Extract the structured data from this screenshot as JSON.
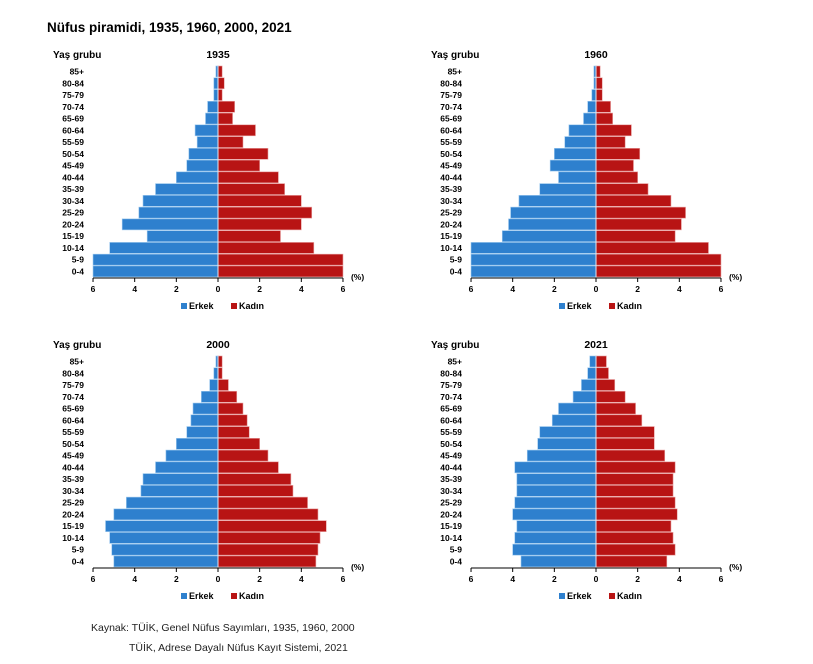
{
  "title": "Nüfus piramidi, 1935, 1960, 2000, 2021",
  "colors": {
    "male": "#2E80CE",
    "female": "#B81414",
    "axis": "#000000"
  },
  "source": {
    "line1": "Kaynak: TÜİK, Genel Nüfus Sayımları, 1935, 1960, 2000",
    "line2": "TÜİK, Adrese Dayalı Nüfus Kayıt Sistemi, 2021"
  },
  "chart_data": [
    {
      "type": "bar",
      "orientation": "horizontal-pyramid",
      "title": "1935",
      "ylabel": "Yaş grubu",
      "xlabel": "(%)",
      "xlim": [
        -6,
        6
      ],
      "x_ticks": [
        "6",
        "4",
        "2",
        "0",
        "2",
        "4",
        "6"
      ],
      "legend": [
        "Erkek",
        "Kadın"
      ],
      "legend_position": "bottom",
      "categories": [
        "85+",
        "80-84",
        "75-79",
        "70-74",
        "65-69",
        "60-64",
        "55-59",
        "50-54",
        "45-49",
        "40-44",
        "35-39",
        "30-34",
        "25-29",
        "20-24",
        "15-19",
        "10-14",
        "5-9",
        "0-4"
      ],
      "series": [
        {
          "name": "Erkek",
          "values": [
            0.1,
            0.2,
            0.2,
            0.5,
            0.6,
            1.1,
            1.0,
            1.4,
            1.5,
            2.0,
            3.0,
            3.6,
            3.8,
            4.6,
            3.4,
            5.2,
            6.0,
            6.0
          ]
        },
        {
          "name": "Kadın",
          "values": [
            0.2,
            0.3,
            0.2,
            0.8,
            0.7,
            1.8,
            1.2,
            2.4,
            2.0,
            2.9,
            3.2,
            4.0,
            4.5,
            4.0,
            3.0,
            4.6,
            6.0,
            6.0
          ]
        }
      ]
    },
    {
      "type": "bar",
      "orientation": "horizontal-pyramid",
      "title": "1960",
      "ylabel": "Yaş grubu",
      "xlabel": "(%)",
      "xlim": [
        -6,
        6
      ],
      "x_ticks": [
        "6",
        "4",
        "2",
        "0",
        "2",
        "4",
        "6"
      ],
      "legend": [
        "Erkek",
        "Kadın"
      ],
      "legend_position": "bottom",
      "categories": [
        "85+",
        "80-84",
        "75-79",
        "70-74",
        "65-69",
        "60-64",
        "55-59",
        "50-54",
        "45-49",
        "40-44",
        "35-39",
        "30-34",
        "25-29",
        "20-24",
        "15-19",
        "10-14",
        "5-9",
        "0-4"
      ],
      "series": [
        {
          "name": "Erkek",
          "values": [
            0.1,
            0.1,
            0.2,
            0.4,
            0.6,
            1.3,
            1.5,
            2.0,
            2.2,
            1.8,
            2.7,
            3.7,
            4.1,
            4.2,
            4.5,
            6.0,
            6.0,
            6.0
          ]
        },
        {
          "name": "Kadın",
          "values": [
            0.2,
            0.3,
            0.3,
            0.7,
            0.8,
            1.7,
            1.4,
            2.1,
            1.8,
            2.0,
            2.5,
            3.6,
            4.3,
            4.1,
            3.8,
            5.4,
            6.0,
            6.0
          ]
        }
      ]
    },
    {
      "type": "bar",
      "orientation": "horizontal-pyramid",
      "title": "2000",
      "ylabel": "Yaş grubu",
      "xlabel": "(%)",
      "xlim": [
        -6,
        6
      ],
      "x_ticks": [
        "6",
        "4",
        "2",
        "0",
        "2",
        "4",
        "6"
      ],
      "legend": [
        "Erkek",
        "Kadın"
      ],
      "legend_position": "bottom",
      "categories": [
        "85+",
        "80-84",
        "75-79",
        "70-74",
        "65-69",
        "60-64",
        "55-59",
        "50-54",
        "45-49",
        "40-44",
        "35-39",
        "30-34",
        "25-29",
        "20-24",
        "15-19",
        "10-14",
        "5-9",
        "0-4"
      ],
      "series": [
        {
          "name": "Erkek",
          "values": [
            0.1,
            0.2,
            0.4,
            0.8,
            1.2,
            1.3,
            1.5,
            2.0,
            2.5,
            3.0,
            3.6,
            3.7,
            4.4,
            5.0,
            5.4,
            5.2,
            5.1,
            5.0
          ]
        },
        {
          "name": "Kadın",
          "values": [
            0.2,
            0.2,
            0.5,
            0.9,
            1.2,
            1.4,
            1.5,
            2.0,
            2.4,
            2.9,
            3.5,
            3.6,
            4.3,
            4.8,
            5.2,
            4.9,
            4.8,
            4.7
          ]
        }
      ]
    },
    {
      "type": "bar",
      "orientation": "horizontal-pyramid",
      "title": "2021",
      "ylabel": "Yaş grubu",
      "xlabel": "(%)",
      "xlim": [
        -6,
        6
      ],
      "x_ticks": [
        "6",
        "4",
        "2",
        "0",
        "2",
        "4",
        "6"
      ],
      "legend": [
        "Erkek",
        "Kadın"
      ],
      "legend_position": "bottom",
      "categories": [
        "85+",
        "80-84",
        "75-79",
        "70-74",
        "65-69",
        "60-64",
        "55-59",
        "50-54",
        "45-49",
        "40-44",
        "35-39",
        "30-34",
        "25-29",
        "20-24",
        "15-19",
        "10-14",
        "5-9",
        "0-4"
      ],
      "series": [
        {
          "name": "Erkek",
          "values": [
            0.3,
            0.4,
            0.7,
            1.1,
            1.8,
            2.1,
            2.7,
            2.8,
            3.3,
            3.9,
            3.8,
            3.8,
            3.9,
            4.0,
            3.8,
            3.9,
            4.0,
            3.6
          ]
        },
        {
          "name": "Kadın",
          "values": [
            0.5,
            0.6,
            0.9,
            1.4,
            1.9,
            2.2,
            2.8,
            2.8,
            3.3,
            3.8,
            3.7,
            3.7,
            3.8,
            3.9,
            3.6,
            3.7,
            3.8,
            3.4
          ]
        }
      ]
    }
  ]
}
